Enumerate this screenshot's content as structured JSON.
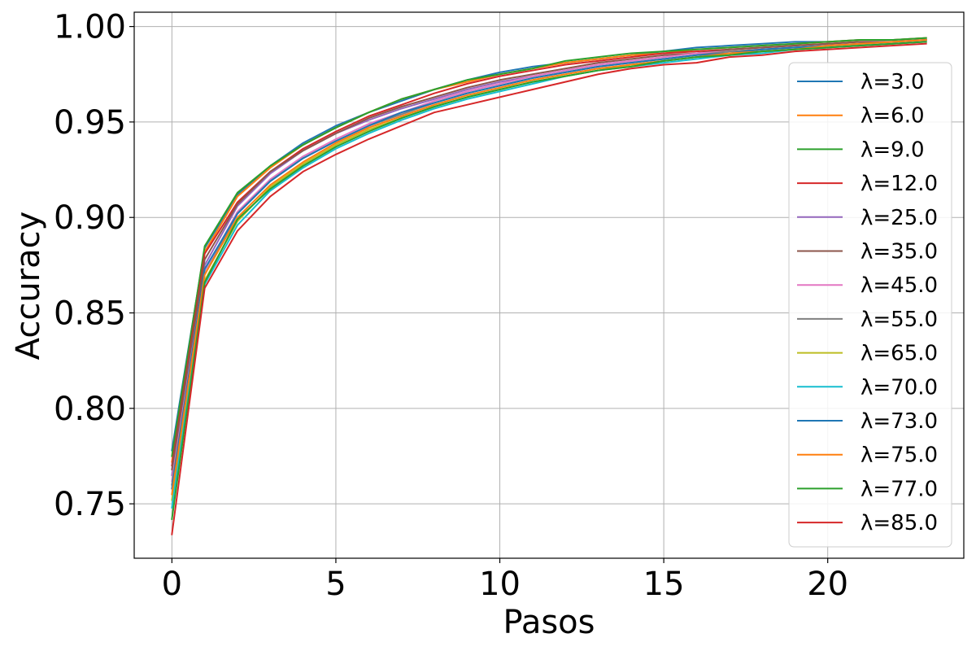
{
  "chart_data": {
    "type": "line",
    "title": "",
    "xlabel": "Pasos",
    "ylabel": "Accuracy",
    "xlim": [
      -1.15,
      24.15
    ],
    "ylim": [
      0.7215,
      1.0075
    ],
    "xticks": [
      0,
      5,
      10,
      15,
      20
    ],
    "xtick_labels": [
      "0",
      "5",
      "10",
      "15",
      "20"
    ],
    "yticks": [
      0.75,
      0.8,
      0.85,
      0.9,
      0.95,
      1.0
    ],
    "ytick_labels": [
      "0.75",
      "0.80",
      "0.85",
      "0.90",
      "0.95",
      "1.00"
    ],
    "grid": true,
    "legend_position": "right",
    "x": [
      0,
      1,
      2,
      3,
      4,
      5,
      6,
      7,
      8,
      9,
      10,
      11,
      12,
      13,
      14,
      15,
      16,
      17,
      18,
      19,
      20,
      21,
      22,
      23
    ],
    "series": [
      {
        "name": "λ=3.0",
        "color": "#1f77b4",
        "values": [
          0.778,
          0.884,
          0.912,
          0.927,
          0.939,
          0.948,
          0.955,
          0.961,
          0.967,
          0.972,
          0.976,
          0.979,
          0.981,
          0.983,
          0.985,
          0.987,
          0.989,
          0.99,
          0.991,
          0.992,
          0.992,
          0.993,
          0.993,
          0.994
        ]
      },
      {
        "name": "λ=6.0",
        "color": "#ff7f0e",
        "values": [
          0.772,
          0.882,
          0.911,
          0.926,
          0.938,
          0.947,
          0.955,
          0.962,
          0.967,
          0.971,
          0.975,
          0.978,
          0.981,
          0.983,
          0.985,
          0.986,
          0.988,
          0.989,
          0.99,
          0.991,
          0.992,
          0.993,
          0.993,
          0.994
        ]
      },
      {
        "name": "λ=9.0",
        "color": "#2ca02c",
        "values": [
          0.775,
          0.885,
          0.913,
          0.927,
          0.938,
          0.947,
          0.955,
          0.962,
          0.967,
          0.972,
          0.975,
          0.978,
          0.982,
          0.984,
          0.986,
          0.987,
          0.988,
          0.989,
          0.99,
          0.991,
          0.992,
          0.993,
          0.993,
          0.994
        ]
      },
      {
        "name": "λ=12.0",
        "color": "#d62728",
        "values": [
          0.77,
          0.881,
          0.908,
          0.924,
          0.936,
          0.945,
          0.953,
          0.959,
          0.965,
          0.97,
          0.974,
          0.977,
          0.98,
          0.982,
          0.984,
          0.986,
          0.987,
          0.988,
          0.989,
          0.99,
          0.991,
          0.992,
          0.992,
          0.993
        ]
      },
      {
        "name": "λ=25.0",
        "color": "#9467bd",
        "values": [
          0.765,
          0.875,
          0.906,
          0.923,
          0.935,
          0.944,
          0.951,
          0.957,
          0.962,
          0.967,
          0.971,
          0.974,
          0.977,
          0.98,
          0.982,
          0.984,
          0.986,
          0.987,
          0.988,
          0.989,
          0.99,
          0.991,
          0.992,
          0.993
        ]
      },
      {
        "name": "λ=35.0",
        "color": "#8c564b",
        "values": [
          0.768,
          0.878,
          0.907,
          0.924,
          0.935,
          0.944,
          0.952,
          0.958,
          0.963,
          0.968,
          0.972,
          0.975,
          0.978,
          0.981,
          0.983,
          0.985,
          0.986,
          0.988,
          0.989,
          0.99,
          0.991,
          0.992,
          0.992,
          0.993
        ]
      },
      {
        "name": "λ=45.0",
        "color": "#e377c2",
        "values": [
          0.762,
          0.872,
          0.903,
          0.92,
          0.932,
          0.941,
          0.949,
          0.955,
          0.961,
          0.966,
          0.97,
          0.974,
          0.977,
          0.98,
          0.982,
          0.984,
          0.986,
          0.987,
          0.988,
          0.989,
          0.99,
          0.991,
          0.992,
          0.993
        ]
      },
      {
        "name": "λ=55.0",
        "color": "#7f7f7f",
        "values": [
          0.76,
          0.87,
          0.902,
          0.919,
          0.931,
          0.94,
          0.948,
          0.954,
          0.96,
          0.965,
          0.969,
          0.973,
          0.976,
          0.979,
          0.981,
          0.983,
          0.985,
          0.987,
          0.988,
          0.989,
          0.99,
          0.991,
          0.992,
          0.993
        ]
      },
      {
        "name": "λ=65.0",
        "color": "#bcbd22",
        "values": [
          0.752,
          0.867,
          0.898,
          0.916,
          0.928,
          0.938,
          0.946,
          0.952,
          0.958,
          0.963,
          0.967,
          0.971,
          0.974,
          0.977,
          0.98,
          0.982,
          0.984,
          0.985,
          0.987,
          0.988,
          0.989,
          0.99,
          0.991,
          0.992
        ]
      },
      {
        "name": "λ=70.0",
        "color": "#17becf",
        "values": [
          0.748,
          0.865,
          0.896,
          0.914,
          0.926,
          0.936,
          0.944,
          0.951,
          0.957,
          0.962,
          0.966,
          0.97,
          0.974,
          0.977,
          0.979,
          0.981,
          0.983,
          0.985,
          0.986,
          0.988,
          0.989,
          0.99,
          0.991,
          0.992
        ]
      },
      {
        "name": "λ=73.0",
        "color": "#1f77b4",
        "values": [
          0.758,
          0.873,
          0.902,
          0.919,
          0.931,
          0.94,
          0.948,
          0.955,
          0.96,
          0.965,
          0.969,
          0.973,
          0.976,
          0.979,
          0.981,
          0.983,
          0.985,
          0.986,
          0.988,
          0.989,
          0.99,
          0.991,
          0.992,
          0.993
        ]
      },
      {
        "name": "λ=75.0",
        "color": "#ff7f0e",
        "values": [
          0.755,
          0.87,
          0.9,
          0.917,
          0.929,
          0.939,
          0.947,
          0.953,
          0.959,
          0.964,
          0.968,
          0.972,
          0.975,
          0.978,
          0.98,
          0.982,
          0.984,
          0.986,
          0.987,
          0.988,
          0.99,
          0.991,
          0.992,
          0.993
        ]
      },
      {
        "name": "λ=77.0",
        "color": "#2ca02c",
        "values": [
          0.742,
          0.866,
          0.899,
          0.915,
          0.927,
          0.937,
          0.945,
          0.952,
          0.958,
          0.963,
          0.967,
          0.971,
          0.974,
          0.977,
          0.979,
          0.982,
          0.984,
          0.985,
          0.987,
          0.988,
          0.989,
          0.99,
          0.991,
          0.992
        ]
      },
      {
        "name": "λ=85.0",
        "color": "#d62728",
        "values": [
          0.734,
          0.863,
          0.893,
          0.911,
          0.924,
          0.933,
          0.941,
          0.948,
          0.955,
          0.959,
          0.963,
          0.967,
          0.971,
          0.975,
          0.978,
          0.98,
          0.981,
          0.984,
          0.985,
          0.987,
          0.988,
          0.989,
          0.99,
          0.991
        ]
      }
    ]
  }
}
